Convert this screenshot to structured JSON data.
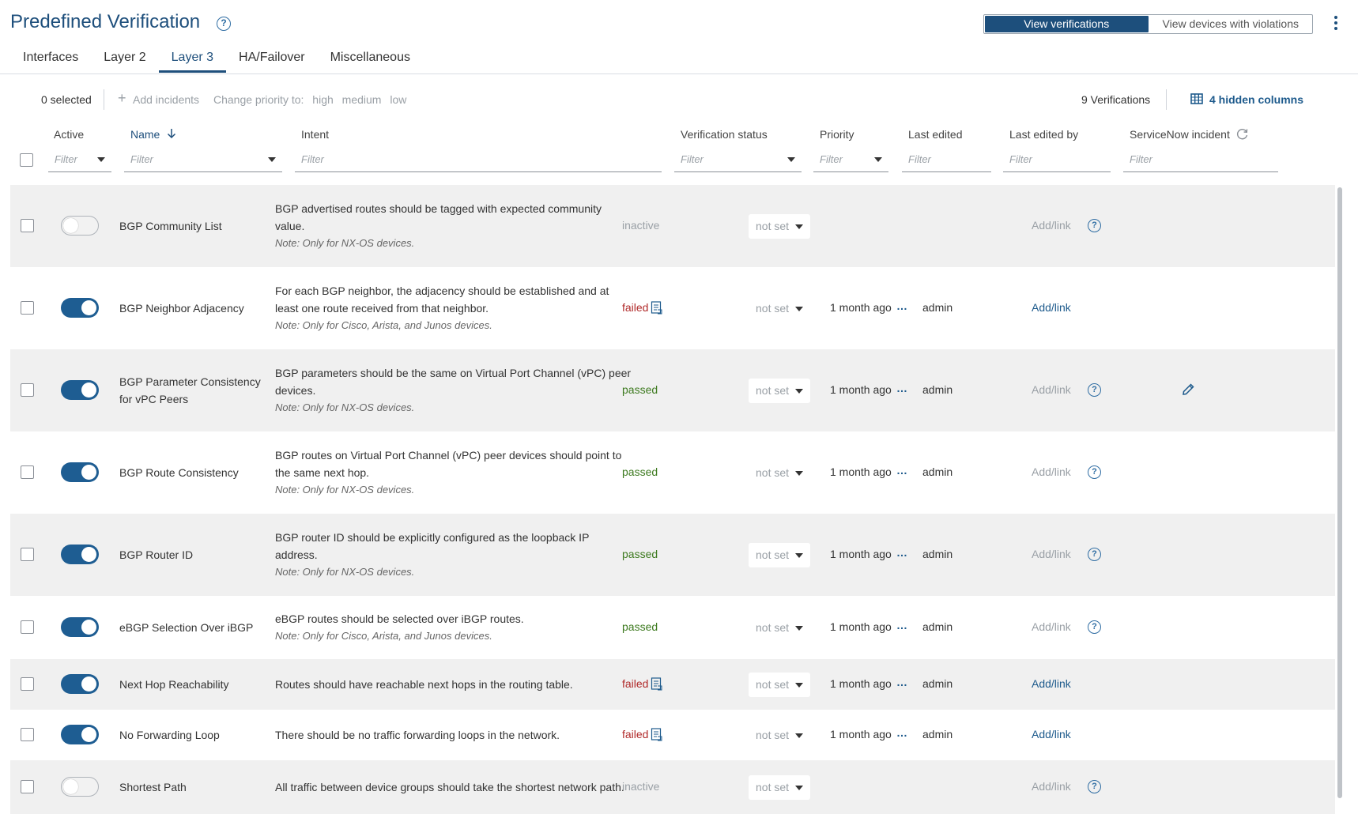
{
  "header": {
    "title": "Predefined Verification",
    "view_toggle": [
      "View verifications",
      "View devices with violations"
    ]
  },
  "tabs": [
    "Interfaces",
    "Layer 2",
    "Layer 3",
    "HA/Failover",
    "Miscellaneous"
  ],
  "active_tab": "Layer 3",
  "toolbar": {
    "selected": "0 selected",
    "add_incidents": "Add incidents",
    "change_priority": "Change priority to:",
    "priorities": [
      "high",
      "medium",
      "low"
    ],
    "count": "9 Verifications",
    "hidden_columns": "4 hidden columns"
  },
  "columns": {
    "active": "Active",
    "name": "Name",
    "intent": "Intent",
    "verification_status": "Verification status",
    "priority": "Priority",
    "last_edited": "Last edited",
    "last_edited_by": "Last edited by",
    "servicenow": "ServiceNow incident",
    "filter_placeholder": "Filter"
  },
  "rows": [
    {
      "active": false,
      "name": [
        "BGP Community List"
      ],
      "intent": [
        "BGP advertised routes should be tagged with expected community",
        "value."
      ],
      "note": "Note: Only for NX-OS devices.",
      "status": "inactive",
      "priority": "not set",
      "last_edited": "",
      "edited_by": "",
      "link": "Add/link",
      "link_active": false,
      "help": true
    },
    {
      "active": true,
      "name": [
        "BGP Neighbor Adjacency"
      ],
      "intent": [
        "For each BGP neighbor, the adjacency should be established and at",
        "least one route received from that neighbor."
      ],
      "note": "Note: Only for Cisco, Arista, and Junos devices.",
      "status": "failed",
      "priority": "not set",
      "last_edited": "1 month ago",
      "edited_by": "admin",
      "link": "Add/link",
      "link_active": true,
      "help": false
    },
    {
      "active": true,
      "name": [
        "BGP Parameter Consistency",
        "for vPC Peers"
      ],
      "intent": [
        "BGP parameters should be the same on Virtual Port Channel (vPC) peer",
        "devices."
      ],
      "note": "Note: Only for NX-OS devices.",
      "status": "passed",
      "priority": "not set",
      "last_edited": "1 month ago",
      "edited_by": "admin",
      "link": "Add/link",
      "link_active": false,
      "help": true
    },
    {
      "active": true,
      "name": [
        "BGP Route Consistency"
      ],
      "intent": [
        "BGP routes on Virtual Port Channel (vPC) peer devices should point to",
        "the same next hop."
      ],
      "note": "Note: Only for NX-OS devices.",
      "status": "passed",
      "priority": "not set",
      "last_edited": "1 month ago",
      "edited_by": "admin",
      "link": "Add/link",
      "link_active": false,
      "help": true
    },
    {
      "active": true,
      "name": [
        "BGP Router ID"
      ],
      "intent": [
        "BGP router ID should be explicitly configured as the loopback IP",
        "address."
      ],
      "note": "Note: Only for NX-OS devices.",
      "status": "passed",
      "priority": "not set",
      "last_edited": "1 month ago",
      "edited_by": "admin",
      "link": "Add/link",
      "link_active": false,
      "help": true
    },
    {
      "active": true,
      "name": [
        "eBGP Selection Over iBGP"
      ],
      "intent": [
        "eBGP routes should be selected over iBGP routes."
      ],
      "note": "Note: Only for Cisco, Arista, and Junos devices.",
      "status": "passed",
      "priority": "not set",
      "last_edited": "1 month ago",
      "edited_by": "admin",
      "link": "Add/link",
      "link_active": false,
      "help": true
    },
    {
      "active": true,
      "name": [
        "Next Hop Reachability"
      ],
      "intent": [
        "Routes should have reachable next hops in the routing table."
      ],
      "note": "",
      "status": "failed",
      "priority": "not set",
      "last_edited": "1 month ago",
      "edited_by": "admin",
      "link": "Add/link",
      "link_active": true,
      "help": false
    },
    {
      "active": true,
      "name": [
        "No Forwarding Loop"
      ],
      "intent": [
        "There should be no traffic forwarding loops in the network."
      ],
      "note": "",
      "status": "failed",
      "priority": "not set",
      "last_edited": "1 month ago",
      "edited_by": "admin",
      "link": "Add/link",
      "link_active": true,
      "help": false
    },
    {
      "active": false,
      "name": [
        "Shortest Path"
      ],
      "intent": [
        "All traffic between device groups should take the shortest network path."
      ],
      "note": "",
      "status": "inactive",
      "priority": "not set",
      "last_edited": "",
      "edited_by": "",
      "link": "Add/link",
      "link_active": false,
      "help": true
    }
  ],
  "colors": {
    "accent": "#1e4f7c",
    "failed": "#b02a2a",
    "passed": "#3d7a1f",
    "muted": "#9aa0a6"
  },
  "icons": [
    "help-icon",
    "kebab-menu-icon",
    "plus-icon",
    "columns-icon",
    "sort-down-icon",
    "refresh-icon",
    "report-icon",
    "pencil-icon"
  ]
}
